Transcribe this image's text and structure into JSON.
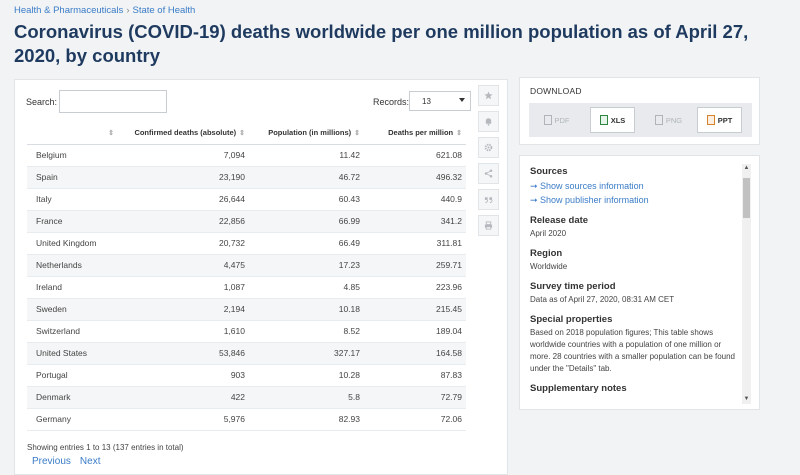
{
  "breadcrumb": {
    "items": [
      "Health & Pharmaceuticals",
      "State of Health"
    ],
    "sep": "›"
  },
  "title": "Coronavirus (COVID-19) deaths worldwide per one million population as of April 27, 2020, by country",
  "search": {
    "label": "Search:",
    "value": ""
  },
  "records": {
    "label": "Records:",
    "value": "13"
  },
  "table": {
    "headers": [
      "",
      "Confirmed deaths (absolute)",
      "Population (in millions)",
      "Deaths per million"
    ],
    "rows": [
      [
        "Belgium",
        "7,094",
        "11.42",
        "621.08"
      ],
      [
        "Spain",
        "23,190",
        "46.72",
        "496.32"
      ],
      [
        "Italy",
        "26,644",
        "60.43",
        "440.9"
      ],
      [
        "France",
        "22,856",
        "66.99",
        "341.2"
      ],
      [
        "United Kingdom",
        "20,732",
        "66.49",
        "311.81"
      ],
      [
        "Netherlands",
        "4,475",
        "17.23",
        "259.71"
      ],
      [
        "Ireland",
        "1,087",
        "4.85",
        "223.96"
      ],
      [
        "Sweden",
        "2,194",
        "10.18",
        "215.45"
      ],
      [
        "Switzerland",
        "1,610",
        "8.52",
        "189.04"
      ],
      [
        "United States",
        "53,846",
        "327.17",
        "164.58"
      ],
      [
        "Portugal",
        "903",
        "10.28",
        "87.83"
      ],
      [
        "Denmark",
        "422",
        "5.8",
        "72.79"
      ],
      [
        "Germany",
        "5,976",
        "82.93",
        "72.06"
      ]
    ]
  },
  "showing": "Showing entries 1 to 13 (137 entries in total)",
  "pager": {
    "previous": "Previous",
    "next": "Next"
  },
  "tools": [
    "star-icon",
    "bell-icon",
    "gear-icon",
    "share-icon",
    "quote-icon",
    "print-icon"
  ],
  "download": {
    "title": "DOWNLOAD",
    "buttons": [
      {
        "label": "PDF",
        "enabled": false
      },
      {
        "label": "XLS",
        "enabled": true
      },
      {
        "label": "PNG",
        "enabled": false
      },
      {
        "label": "PPT",
        "enabled": true
      }
    ]
  },
  "info": {
    "sources_h": "Sources",
    "sources_link": "➞ Show sources information",
    "publisher_link": "➞ Show publisher information",
    "release_h": "Release date",
    "release_v": "April 2020",
    "region_h": "Region",
    "region_v": "Worldwide",
    "survey_h": "Survey time period",
    "survey_v": "Data as of April 27, 2020, 08:31 AM CET",
    "special_h": "Special properties",
    "special_v": "Based on 2018 population figures; This table shows worldwide countries with a population of one million or more. 28 countries with a smaller population can be found under the \"Details\" tab.",
    "supp_h": "Supplementary notes"
  },
  "colors": {
    "accent": "#3a7cc7",
    "title": "#1f3a5f",
    "xls": "#2e8540",
    "ppt": "#d9822b"
  }
}
